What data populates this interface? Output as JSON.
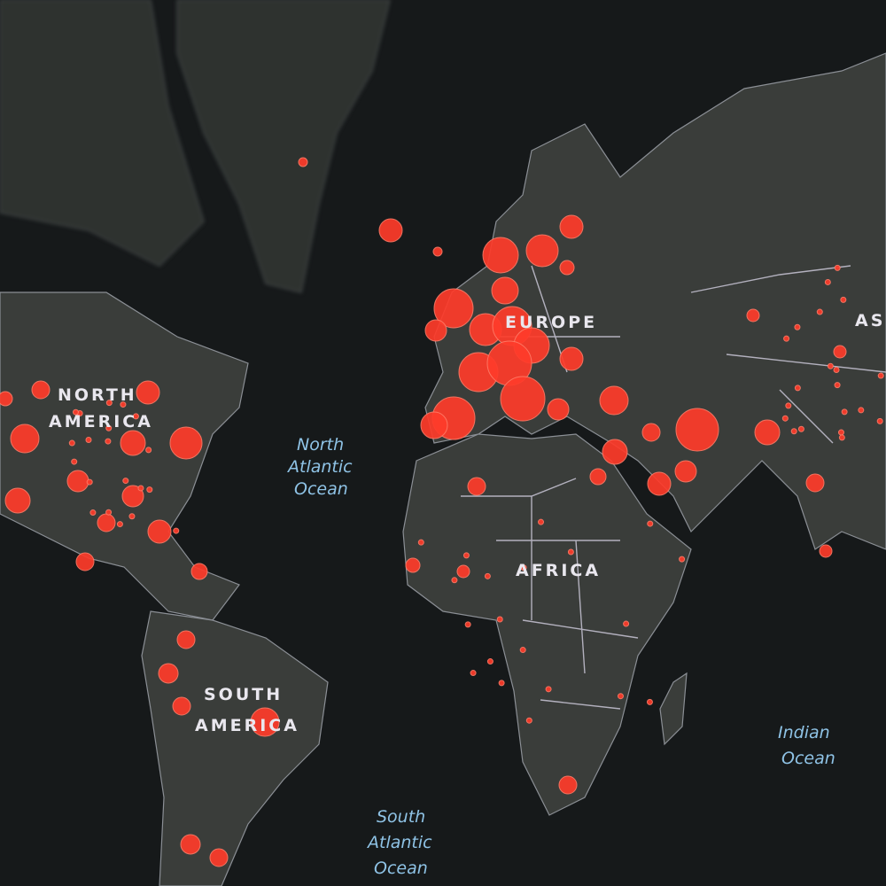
{
  "map": {
    "continent_labels": {
      "north_america": [
        "NORTH",
        "AMERICA"
      ],
      "south_america": [
        "SOUTH",
        "AMERICA"
      ],
      "europe": "EUROPE",
      "africa": "AFRICA",
      "asia": "AS"
    },
    "ocean_labels": {
      "north_atlantic": [
        "North",
        "Atlantic",
        "Ocean"
      ],
      "south_atlantic": [
        "South",
        "Atlantic",
        "Ocean"
      ],
      "indian": [
        "Indian",
        "Ocean"
      ]
    },
    "colors": {
      "ocean": "#16191a",
      "land": "#3a3d3a",
      "marker": "#ff3b2a",
      "ocean_label": "#8fc3e6"
    }
  }
}
